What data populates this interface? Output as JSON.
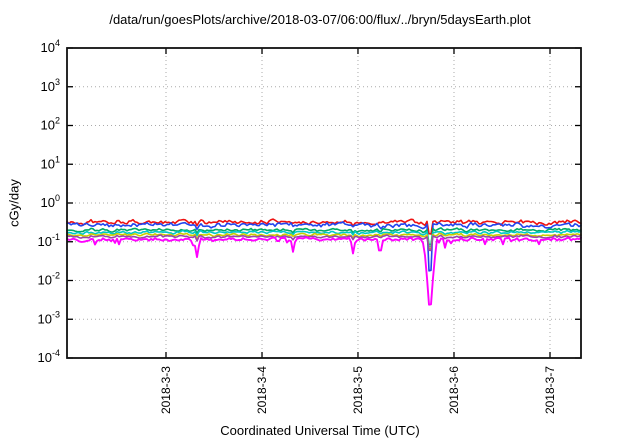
{
  "chart_data": {
    "type": "line",
    "title": "/data/run/goesPlots/archive/2018-03-07/06:00/flux/../bryn/5daysEarth.plot",
    "xlabel": "Coordinated Universal Time (UTC)",
    "ylabel": "cGy/day",
    "legend": false,
    "grid": true,
    "y_axis": {
      "scale": "log",
      "min": 0.0001,
      "max": 10000,
      "tick_base": "10",
      "tick_exponents": [
        "4",
        "3",
        "2",
        "1",
        "0",
        "-1",
        "-2",
        "-3",
        "-4"
      ]
    },
    "x_axis": {
      "ticks": [
        {
          "label": "2018-3-3",
          "f": 0.1926
        },
        {
          "label": "2018-3-4",
          "f": 0.3794
        },
        {
          "label": "2018-3-5",
          "f": 0.5661
        },
        {
          "label": "2018-3-6",
          "f": 0.7529
        },
        {
          "label": "2018-3-7",
          "f": 0.9397
        }
      ]
    },
    "series": [
      {
        "name": "series-1-red",
        "color": "#ee1111",
        "base": 0.32,
        "noise": 0.1
      },
      {
        "name": "series-2-blue",
        "color": "#2244ee",
        "base": 0.27,
        "noise": 0.1
      },
      {
        "name": "series-3-green",
        "color": "#00aa66",
        "base": 0.2,
        "noise": 0.055
      },
      {
        "name": "series-4-cyan",
        "color": "#00c8c8",
        "base": 0.175,
        "noise": 0.05
      },
      {
        "name": "series-5-yellow",
        "color": "#cccc00",
        "base": 0.15,
        "noise": 0.045
      },
      {
        "name": "series-6-purple",
        "color": "#9944aa",
        "base": 0.135,
        "noise": 0.045
      },
      {
        "name": "series-7-magenta",
        "color": "#ff00ff",
        "base": 0.115,
        "noise": 0.07,
        "spiky": true
      }
    ],
    "dips": [
      {
        "f": 0.2529,
        "others_factor": 0.82,
        "others_w": 2,
        "targets": {
          "series-7-magenta": {
            "v": 0.04,
            "w": 3
          }
        }
      },
      {
        "f": 0.4105,
        "targets": {
          "series-7-magenta": {
            "v": 0.085,
            "w": 2
          }
        }
      },
      {
        "f": 0.4397,
        "others_factor": 0.88,
        "others_w": 2,
        "targets": {
          "series-7-magenta": {
            "v": 0.055,
            "w": 2.5
          }
        }
      },
      {
        "f": 0.5564,
        "others_factor": 0.85,
        "others_w": 2,
        "targets": {
          "series-7-magenta": {
            "v": 0.05,
            "w": 2.5
          }
        }
      },
      {
        "f": 0.6089,
        "others_factor": 0.85,
        "others_w": 2,
        "targets": {
          "series-7-magenta": {
            "v": 0.04,
            "w": 2.5
          }
        }
      },
      {
        "f": 0.6946,
        "others_factor": 0.75,
        "others_w": 2,
        "targets": {
          "series-7-magenta": {
            "v": 0.07,
            "w": 2
          }
        }
      },
      {
        "f": 0.7062,
        "targets": {
          "series-7-magenta": {
            "v": 0.0011,
            "w": 6
          },
          "series-2-blue": {
            "v": 0.0045,
            "w": 3
          },
          "series-3-green": {
            "v": 0.055,
            "w": 3
          },
          "series-4-cyan": {
            "v": 0.05,
            "w": 3
          },
          "series-5-yellow": {
            "v": 0.045,
            "w": 3
          },
          "series-6-purple": {
            "v": 0.04,
            "w": 3
          },
          "series-1-red": {
            "v": 0.11,
            "w": 3
          }
        }
      },
      {
        "f": 0.7354,
        "others_factor": 0.88,
        "others_w": 2,
        "targets": {
          "series-7-magenta": {
            "v": 0.07,
            "w": 2
          }
        }
      }
    ]
  }
}
